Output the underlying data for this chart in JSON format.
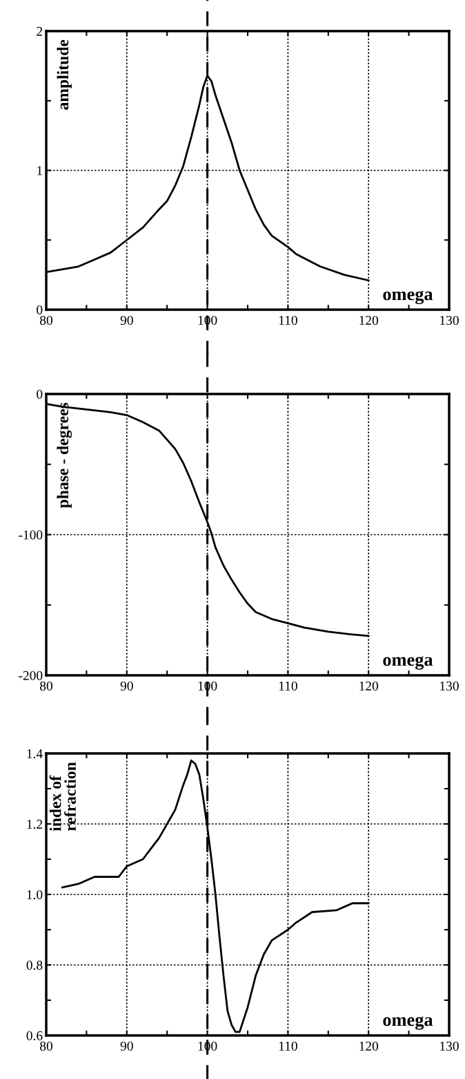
{
  "chart_data": [
    {
      "type": "line",
      "ylabel": "amplitude",
      "xlabel": "omega",
      "xlim": [
        80,
        130
      ],
      "xticks": [
        80,
        90,
        100,
        110,
        120,
        130
      ],
      "ylim": [
        0,
        2
      ],
      "yticks": [
        0,
        1,
        2
      ],
      "grid": true,
      "marker": "none",
      "line_style": "solid",
      "x": [
        80,
        82,
        84,
        86,
        88,
        90,
        92,
        94,
        95,
        96,
        97,
        98,
        99,
        99.5,
        100,
        100.5,
        101,
        102,
        103,
        104,
        105,
        106,
        107,
        108,
        110,
        111,
        114,
        117,
        120
      ],
      "series": [
        {
          "color": "#000000",
          "values": [
            0.27,
            0.29,
            0.31,
            0.36,
            0.41,
            0.5,
            0.59,
            0.72,
            0.78,
            0.89,
            1.03,
            1.24,
            1.47,
            1.6,
            1.68,
            1.64,
            1.54,
            1.37,
            1.2,
            1.0,
            0.86,
            0.72,
            0.61,
            0.53,
            0.45,
            0.4,
            0.31,
            0.25,
            0.21
          ]
        }
      ],
      "ref_lines": [
        {
          "axis": "x",
          "value": 100,
          "color": "#000000",
          "line_style": "dashed"
        }
      ]
    },
    {
      "type": "line",
      "ylabel": "phase - degrees",
      "xlabel": "omega",
      "xlim": [
        80,
        130
      ],
      "xticks": [
        80,
        90,
        100,
        110,
        120,
        130
      ],
      "ylim": [
        -200,
        0
      ],
      "yticks": [
        -200,
        -100,
        0
      ],
      "grid": true,
      "marker": "none",
      "line_style": "solid",
      "x": [
        80,
        82,
        85,
        88,
        90,
        92,
        94,
        96,
        97,
        98,
        99,
        100,
        100.5,
        101,
        102,
        103,
        104,
        105,
        106,
        108,
        110,
        112,
        115,
        118,
        120
      ],
      "series": [
        {
          "color": "#000000",
          "values": [
            -7,
            -9,
            -11,
            -13,
            -15,
            -20,
            -26,
            -39,
            -49,
            -62,
            -77,
            -91,
            -99,
            -109,
            -122,
            -132,
            -141,
            -149,
            -155,
            -160,
            -163,
            -166,
            -169,
            -171,
            -172
          ]
        }
      ],
      "ref_lines": [
        {
          "axis": "x",
          "value": 100,
          "color": "#000000",
          "line_style": "dashed"
        }
      ]
    },
    {
      "type": "line",
      "ylabel": "index of\nrefraction",
      "xlabel": "omega",
      "xlim": [
        80,
        130
      ],
      "xticks": [
        80,
        90,
        100,
        110,
        120,
        130
      ],
      "ylim": [
        0.6,
        1.4
      ],
      "yticks": [
        {
          "value": 0.6,
          "label": "0.6"
        },
        {
          "value": 0.8,
          "label": "0.8"
        },
        {
          "value": 1.0,
          "label": "1.0"
        },
        {
          "value": 1.2,
          "label": "1.2"
        },
        {
          "value": 1.4,
          "label": "1.4"
        }
      ],
      "grid": true,
      "marker": "none",
      "line_style": "solid",
      "x": [
        82,
        84,
        86,
        89,
        90,
        92,
        93,
        94,
        95,
        96,
        97,
        97.5,
        98,
        98.5,
        99,
        99.5,
        100,
        100.5,
        101,
        101.5,
        102,
        102.5,
        103,
        103.5,
        104,
        105,
        106,
        107,
        108,
        110,
        111,
        113,
        116,
        118,
        120
      ],
      "series": [
        {
          "color": "#000000",
          "values": [
            1.02,
            1.03,
            1.05,
            1.05,
            1.08,
            1.1,
            1.13,
            1.16,
            1.2,
            1.24,
            1.31,
            1.34,
            1.38,
            1.37,
            1.34,
            1.27,
            1.19,
            1.1,
            1.0,
            0.88,
            0.77,
            0.67,
            0.63,
            0.61,
            0.61,
            0.68,
            0.77,
            0.83,
            0.87,
            0.9,
            0.92,
            0.95,
            0.955,
            0.975,
            0.975
          ]
        }
      ],
      "ref_lines": [
        {
          "axis": "x",
          "value": 100,
          "color": "#000000",
          "line_style": "dashed"
        }
      ]
    }
  ]
}
